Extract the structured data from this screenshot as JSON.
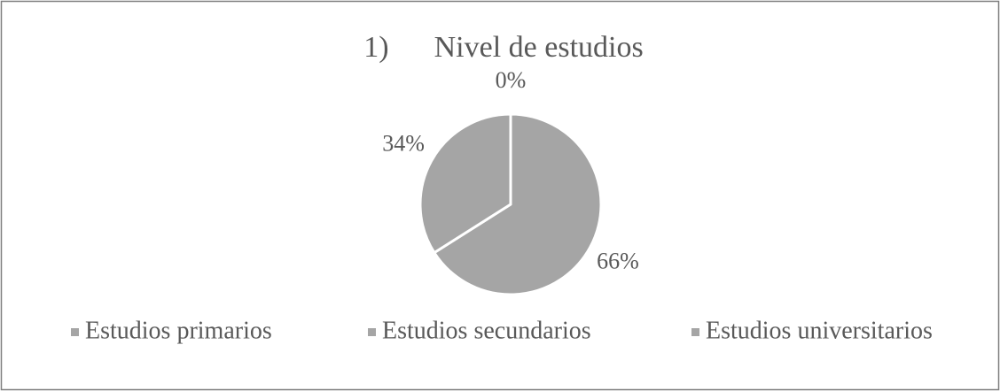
{
  "chart_data": {
    "type": "pie",
    "title": "1)      Nivel de estudios",
    "categories": [
      "Estudios primarios",
      "Estudios secundarios",
      "Estudios universitarios"
    ],
    "values": [
      0,
      66,
      34
    ],
    "value_labels": [
      "0%",
      "66%",
      "34%"
    ],
    "colors": [
      "#a5a5a5",
      "#a5a5a5",
      "#a5a5a5"
    ],
    "legend": "bottom"
  }
}
